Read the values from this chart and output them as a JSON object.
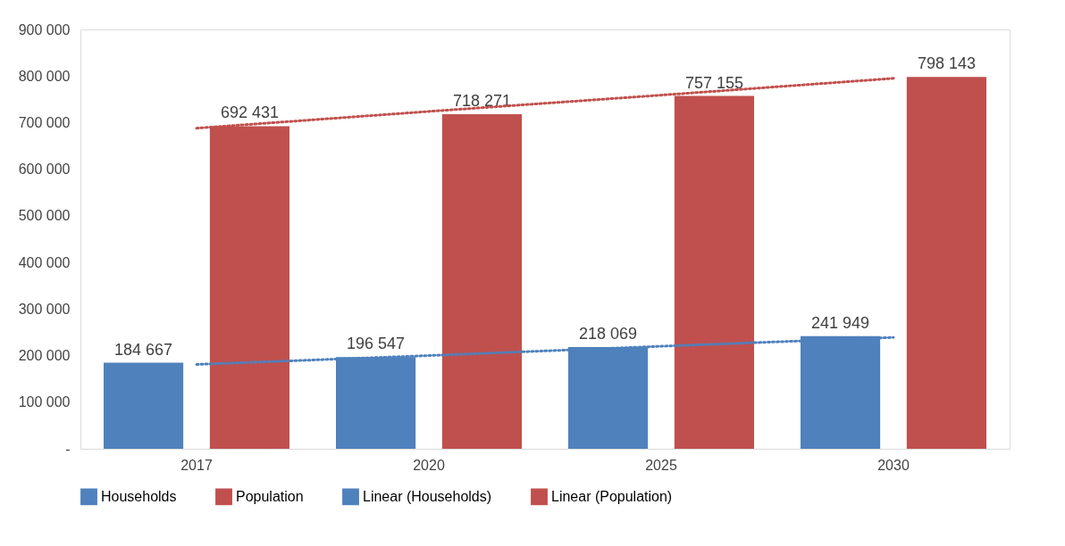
{
  "chart_data": {
    "type": "bar",
    "categories": [
      "2017",
      "2020",
      "2025",
      "2030"
    ],
    "series": [
      {
        "name": "Households",
        "color": "#4f81bd",
        "values": [
          184667,
          196547,
          218069,
          241949
        ],
        "value_labels": [
          "184 667",
          "196 547",
          "218 069",
          "241 949"
        ]
      },
      {
        "name": "Population",
        "color": "#c0504d",
        "values": [
          692431,
          718271,
          757155,
          798143
        ],
        "value_labels": [
          "692 431",
          "718 271",
          "757 155",
          "798 143"
        ]
      },
      {
        "name": "Linear (Households)",
        "type": "line",
        "line_style": "dotted",
        "color": "#4f81bd",
        "values": [
          181000,
          200000,
          220000,
          239000
        ]
      },
      {
        "name": "Linear (Population)",
        "type": "line",
        "line_style": "dotted",
        "color": "#c0504d",
        "values": [
          688000,
          724000,
          759000,
          795000
        ]
      }
    ],
    "ylim": [
      0,
      900000
    ],
    "yticks": [
      {
        "value": 0,
        "label": "-"
      },
      {
        "value": 100000,
        "label": "100 000"
      },
      {
        "value": 200000,
        "label": "200 000"
      },
      {
        "value": 300000,
        "label": "300 000"
      },
      {
        "value": 400000,
        "label": "400 000"
      },
      {
        "value": 500000,
        "label": "500 000"
      },
      {
        "value": 600000,
        "label": "600 000"
      },
      {
        "value": 700000,
        "label": "700 000"
      },
      {
        "value": 800000,
        "label": "800 000"
      },
      {
        "value": 900000,
        "label": "900 000"
      }
    ],
    "grid": false,
    "legend": "bottom"
  }
}
